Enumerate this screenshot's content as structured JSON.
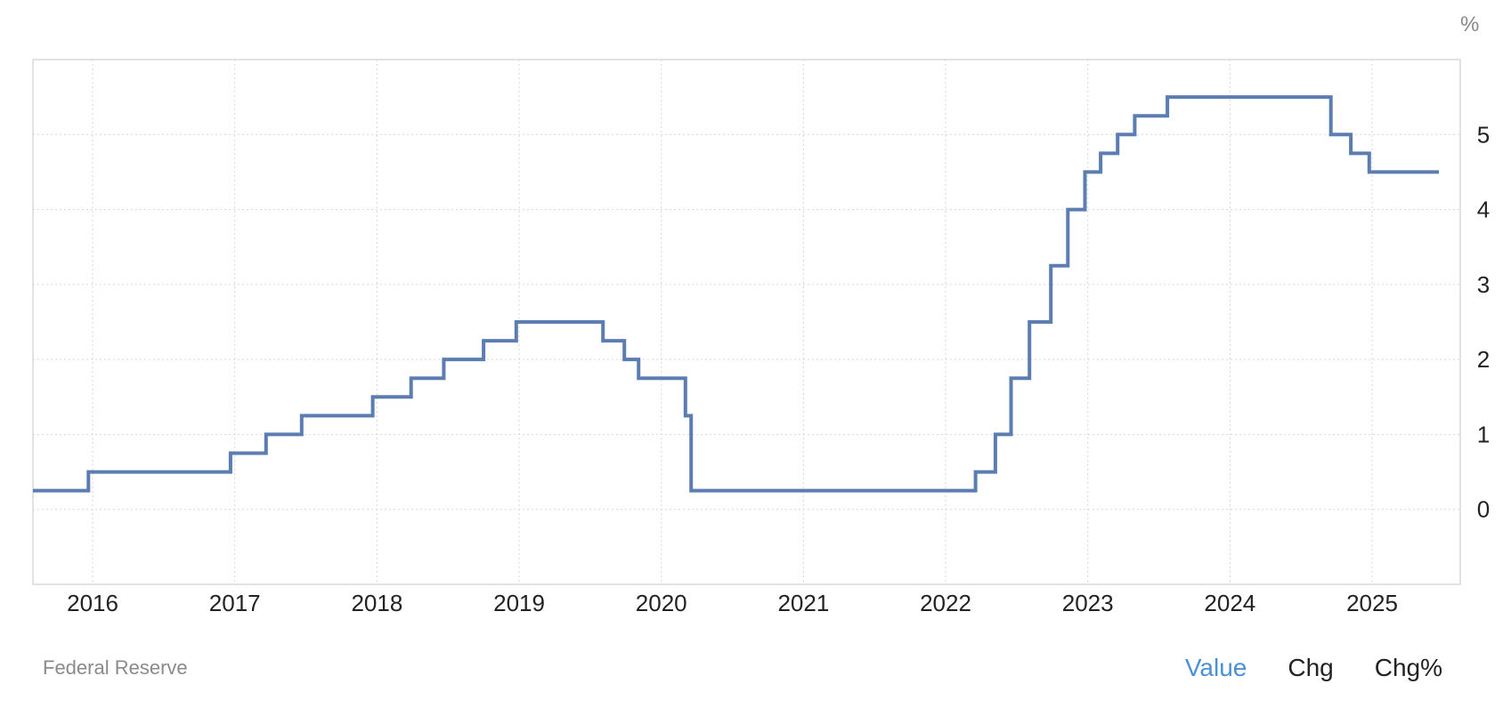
{
  "chart_data": {
    "type": "line",
    "step": true,
    "title": "",
    "unit": "%",
    "xlabel": "",
    "ylabel": "",
    "x_tick_labels": [
      "2016",
      "2017",
      "2018",
      "2019",
      "2020",
      "2021",
      "2022",
      "2023",
      "2024",
      "2025"
    ],
    "y_tick_labels": [
      "0",
      "1",
      "2",
      "3",
      "4",
      "5"
    ],
    "ylim": [
      -1,
      6
    ],
    "xlim": [
      2015.58,
      2025.62
    ],
    "grid": true,
    "legend": "none",
    "color": "#5b7db1",
    "series": [
      {
        "x": [
          2015.58,
          2015.97,
          2015.97,
          2016.97,
          2016.97,
          2017.22,
          2017.22,
          2017.47,
          2017.47,
          2017.97,
          2017.97,
          2018.24,
          2018.24,
          2018.47,
          2018.47,
          2018.75,
          2018.75,
          2018.98,
          2018.98,
          2019.59,
          2019.59,
          2019.74,
          2019.74,
          2019.84,
          2019.84,
          2020.17,
          2020.17,
          2020.21,
          2020.21,
          2022.21,
          2022.21,
          2022.35,
          2022.35,
          2022.46,
          2022.46,
          2022.59,
          2022.59,
          2022.74,
          2022.74,
          2022.86,
          2022.86,
          2022.98,
          2022.98,
          2023.09,
          2023.09,
          2023.21,
          2023.21,
          2023.33,
          2023.33,
          2023.56,
          2023.56,
          2024.71,
          2024.71,
          2024.85,
          2024.85,
          2024.98,
          2024.98,
          2025.47
        ],
        "y": [
          0.25,
          0.25,
          0.5,
          0.5,
          0.75,
          0.75,
          1.0,
          1.0,
          1.25,
          1.25,
          1.5,
          1.5,
          1.75,
          1.75,
          2.0,
          2.0,
          2.25,
          2.25,
          2.5,
          2.5,
          2.25,
          2.25,
          2.0,
          2.0,
          1.75,
          1.75,
          1.25,
          1.25,
          0.25,
          0.25,
          0.5,
          0.5,
          1.0,
          1.0,
          1.75,
          1.75,
          2.5,
          2.5,
          3.25,
          3.25,
          4.0,
          4.0,
          4.5,
          4.5,
          4.75,
          4.75,
          5.0,
          5.0,
          5.25,
          5.25,
          5.5,
          5.5,
          5.0,
          5.0,
          4.75,
          4.75,
          4.5,
          4.5
        ]
      }
    ]
  },
  "source": "Federal Reserve",
  "tabs": [
    {
      "label": "Value",
      "active": true
    },
    {
      "label": "Chg",
      "active": false
    },
    {
      "label": "Chg%",
      "active": false
    }
  ]
}
